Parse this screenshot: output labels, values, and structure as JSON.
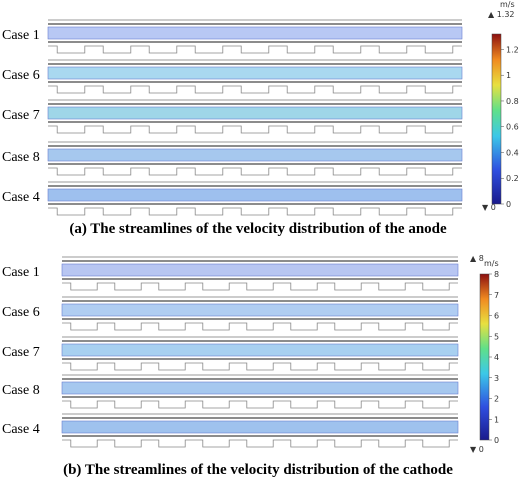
{
  "panels": [
    {
      "cases": [
        "Case 1",
        "Case 6",
        "Case 7",
        "Case 8",
        "Case 4"
      ],
      "unit": "m/s",
      "max": {
        "value": 1.32,
        "label": "▲ 1.32"
      },
      "min": {
        "value": 0,
        "label": "▼ 0"
      },
      "colorbar_ticks": [
        0,
        0.2,
        0.4,
        0.6,
        0.8,
        1,
        1.2
      ],
      "caption": "(a) The streamlines of the velocity distribution of the anode"
    },
    {
      "cases": [
        "Case 1",
        "Case 6",
        "Case 7",
        "Case 8",
        "Case 4"
      ],
      "unit": "m/s",
      "max": {
        "value": 8,
        "label": "▲ 8"
      },
      "min": {
        "value": 0,
        "label": "▼ 0"
      },
      "colorbar_ticks": [
        0,
        1,
        2,
        3,
        4,
        5,
        6,
        7,
        8
      ],
      "caption": "(b) The streamlines of the velocity distribution of the cathode"
    }
  ]
}
